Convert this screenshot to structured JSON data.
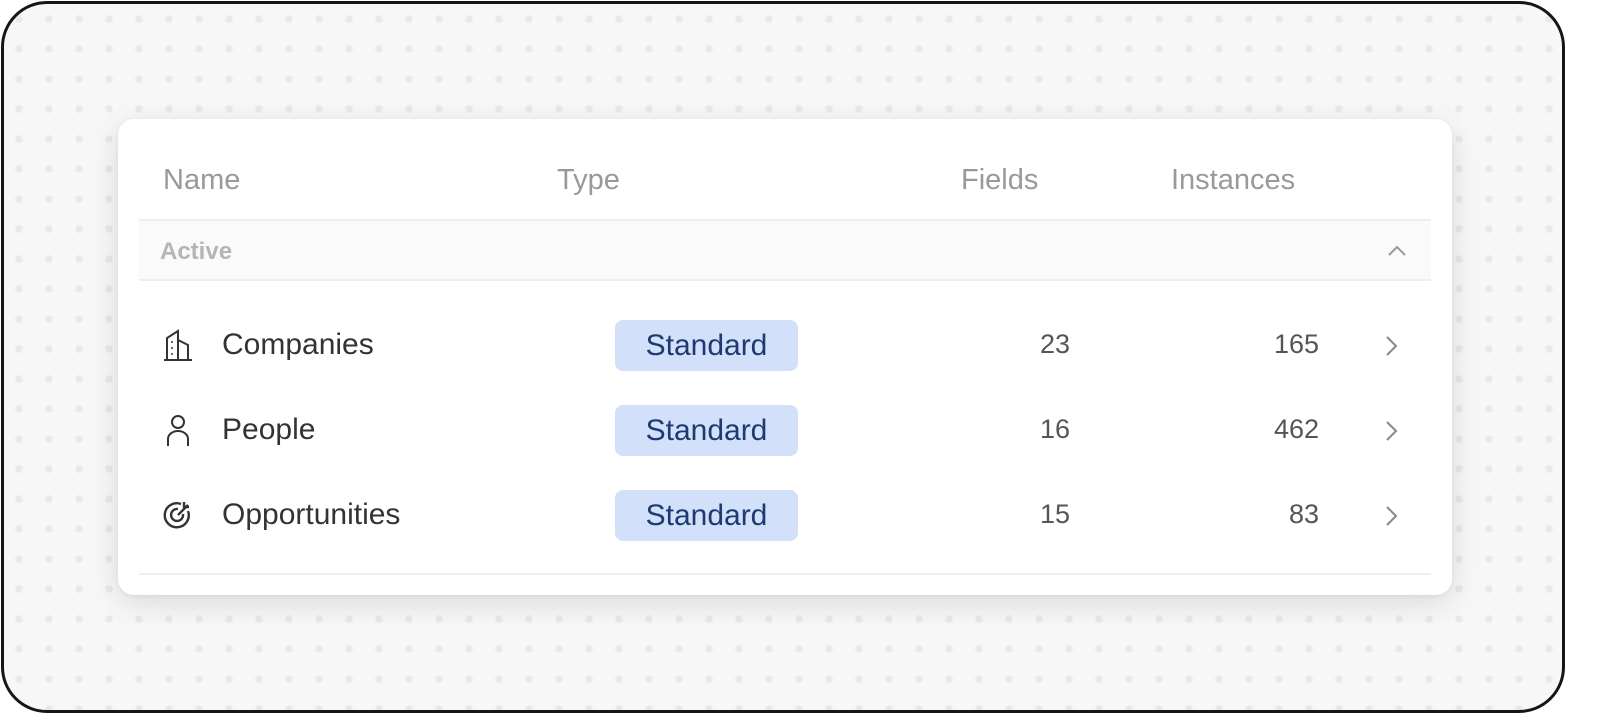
{
  "table": {
    "headers": {
      "name": "Name",
      "type": "Type",
      "fields": "Fields",
      "instances": "Instances"
    },
    "group": {
      "label": "Active",
      "expanded": true
    },
    "rows": [
      {
        "icon": "building-icon",
        "name": "Companies",
        "type": "Standard",
        "fields": "23",
        "instances": "165"
      },
      {
        "icon": "user-icon",
        "name": "People",
        "type": "Standard",
        "fields": "16",
        "instances": "462"
      },
      {
        "icon": "target-icon",
        "name": "Opportunities",
        "type": "Standard",
        "fields": "15",
        "instances": "83"
      }
    ]
  },
  "colors": {
    "badge_bg": "#d2e0f9",
    "badge_text": "#1d3a72"
  }
}
